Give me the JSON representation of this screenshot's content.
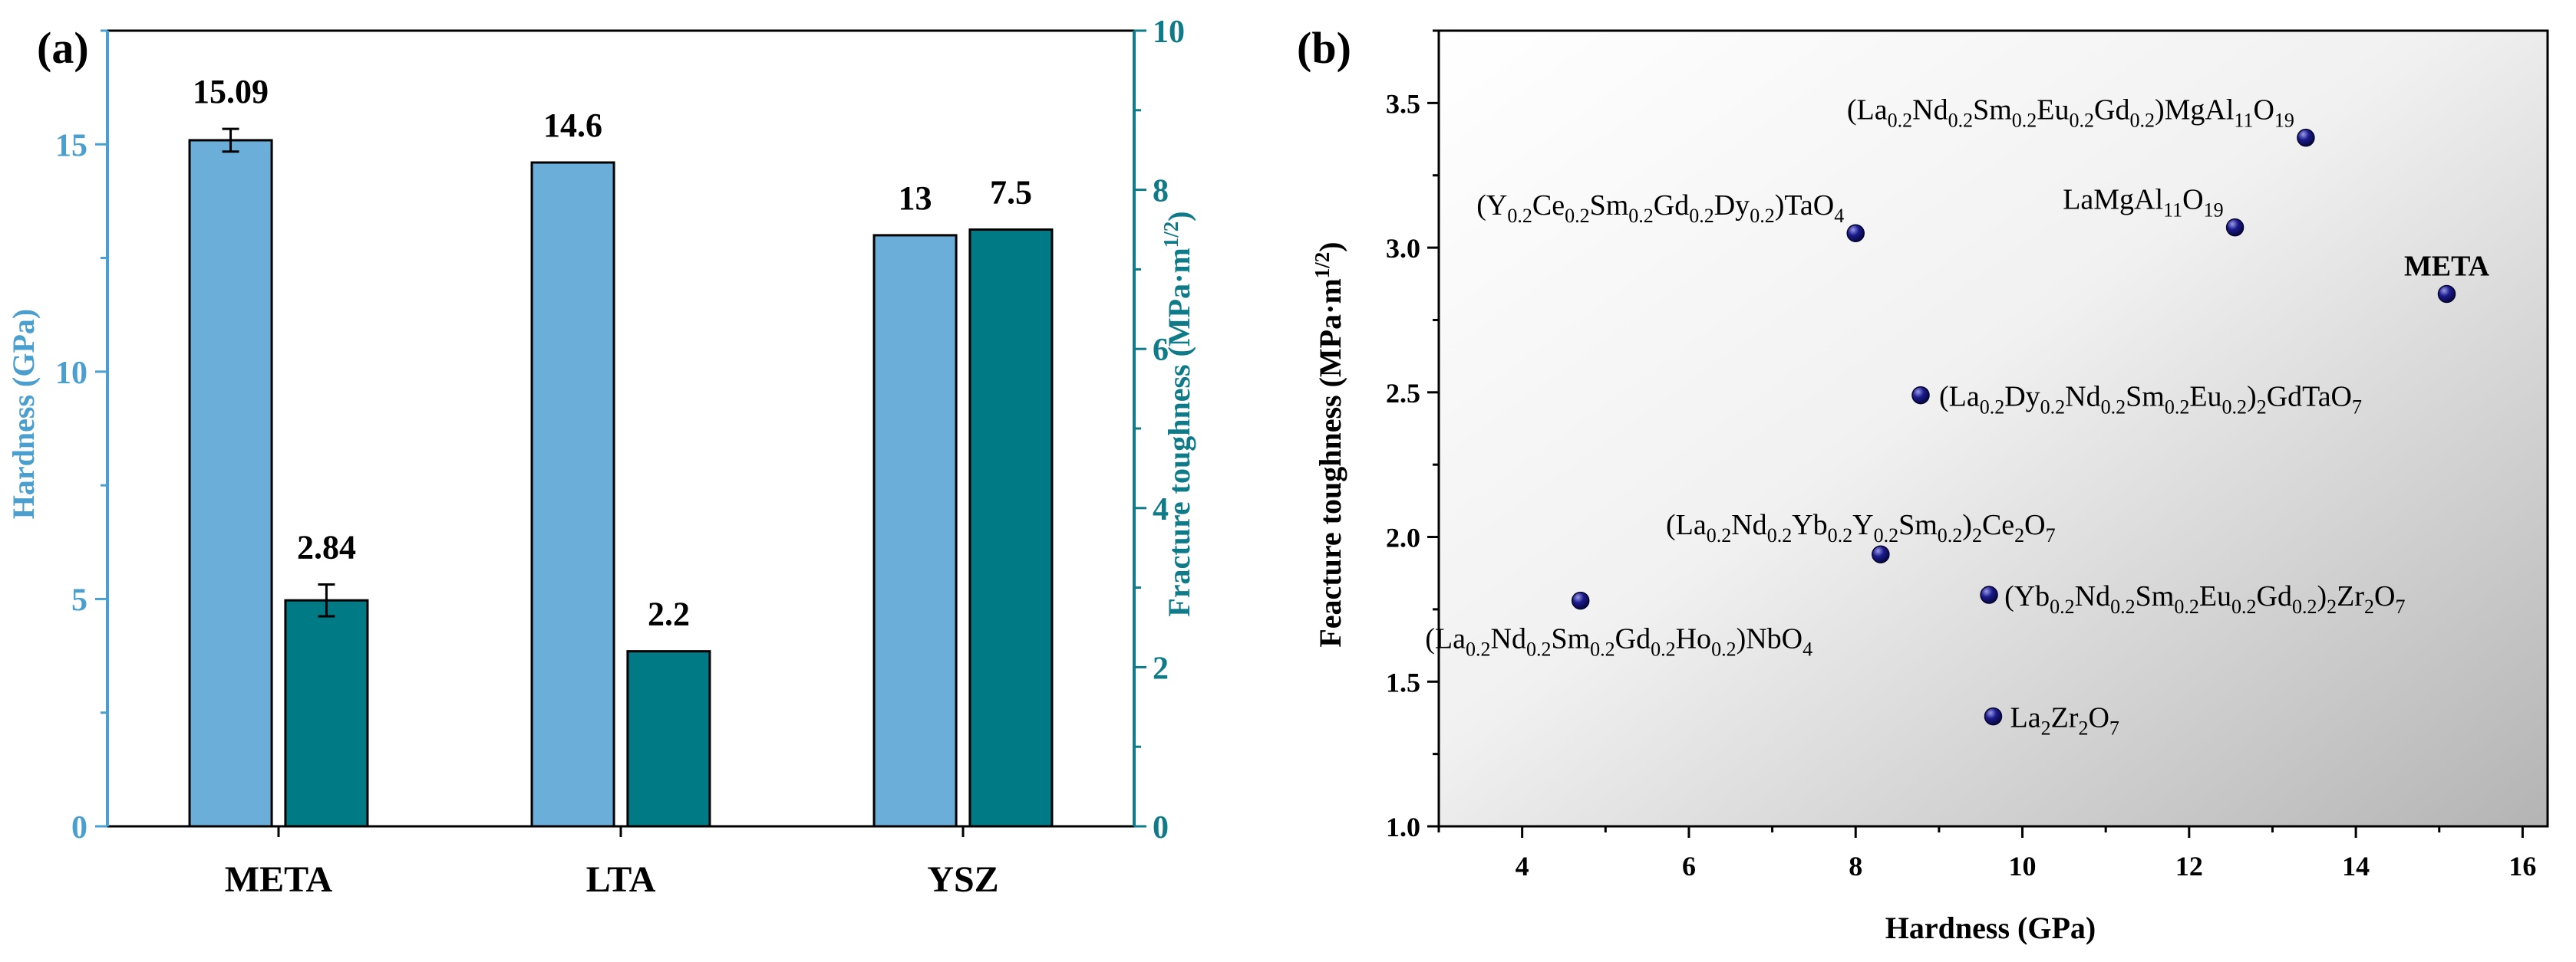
{
  "colors": {
    "hardness": "#6aaed9",
    "toughness": "#007a85",
    "hardness_axis": "#4a9fce",
    "toughness_axis": "#0f7a88",
    "marker": "#1a1a8c",
    "axis": "#000000"
  },
  "chart_data": [
    {
      "panel_label": "(a)",
      "type": "bar",
      "categories": [
        "META",
        "LTA",
        "YSZ"
      ],
      "series": [
        {
          "name": "Hardness",
          "axis": "left",
          "values": [
            15.09,
            14.6,
            13
          ],
          "value_labels": [
            "15.09",
            "14.6",
            "13"
          ],
          "errors": [
            0.25,
            null,
            null
          ]
        },
        {
          "name": "Fracture toughness",
          "axis": "right",
          "values": [
            2.84,
            2.2,
            7.5
          ],
          "value_labels": [
            "2.84",
            "2.2",
            "7.5"
          ],
          "errors": [
            0.2,
            null,
            null
          ]
        }
      ],
      "ylabel": "Hardness (GPa)",
      "y2label_main": "Fracture toughness (MPa·m",
      "y2label_exp": "1/2",
      "y2label_close": ")",
      "ylim": [
        0,
        17.5
      ],
      "y2lim": [
        0,
        10
      ],
      "yticks": [
        "0",
        "5",
        "10",
        "15"
      ],
      "y2ticks": [
        "0",
        "2",
        "4",
        "6",
        "8",
        "10"
      ]
    },
    {
      "panel_label": "(b)",
      "type": "scatter",
      "xlabel": "Hardness (GPa)",
      "ylabel_main": "Feacture toughness (MPa·m",
      "ylabel_exp": "1/2",
      "ylabel_close": ")",
      "xlim": [
        3,
        16.3
      ],
      "ylim": [
        1.0,
        3.75
      ],
      "xticks": [
        "4",
        "6",
        "8",
        "10",
        "12",
        "14",
        "16"
      ],
      "yticks": [
        "1.0",
        "1.5",
        "2.0",
        "2.5",
        "3.0",
        "3.5"
      ],
      "points": [
        {
          "x": 13.4,
          "y": 3.38,
          "parts": [
            [
              "(La",
              ""
            ],
            [
              "0.2",
              "sub"
            ],
            [
              "Nd",
              ""
            ],
            [
              "0.2",
              "sub"
            ],
            [
              "Sm",
              ""
            ],
            [
              "0.2",
              "sub"
            ],
            [
              "Eu",
              ""
            ],
            [
              "0.2",
              "sub"
            ],
            [
              "Gd",
              ""
            ],
            [
              "0.2",
              "sub"
            ],
            [
              ")MgAl",
              ""
            ],
            [
              "11",
              "sub"
            ],
            [
              "O",
              ""
            ],
            [
              "19",
              "sub"
            ]
          ]
        },
        {
          "x": 12.55,
          "y": 3.07,
          "parts": [
            [
              "LaMgAl",
              ""
            ],
            [
              "11",
              "sub"
            ],
            [
              "O",
              ""
            ],
            [
              "19",
              "sub"
            ]
          ]
        },
        {
          "x": 8.0,
          "y": 3.05,
          "parts": [
            [
              "(Y",
              ""
            ],
            [
              "0.2",
              "sub"
            ],
            [
              "Ce",
              ""
            ],
            [
              "0.2",
              "sub"
            ],
            [
              "Sm",
              ""
            ],
            [
              "0.2",
              "sub"
            ],
            [
              "Gd",
              ""
            ],
            [
              "0.2",
              "sub"
            ],
            [
              "Dy",
              ""
            ],
            [
              "0.2",
              "sub"
            ],
            [
              ")TaO",
              ""
            ],
            [
              "4",
              "sub"
            ]
          ]
        },
        {
          "x": 15.09,
          "y": 2.84,
          "parts": [
            [
              "META",
              "bold"
            ]
          ]
        },
        {
          "x": 8.78,
          "y": 2.49,
          "parts": [
            [
              "(La",
              ""
            ],
            [
              "0.2",
              "sub"
            ],
            [
              "Dy",
              ""
            ],
            [
              "0.2",
              "sub"
            ],
            [
              "Nd",
              ""
            ],
            [
              "0.2",
              "sub"
            ],
            [
              "Sm",
              ""
            ],
            [
              "0.2",
              "sub"
            ],
            [
              "Eu",
              ""
            ],
            [
              "0.2",
              "sub"
            ],
            [
              ")",
              ""
            ],
            [
              "2",
              "sub"
            ],
            [
              "GdTaO",
              ""
            ],
            [
              "7",
              "sub"
            ]
          ]
        },
        {
          "x": 8.3,
          "y": 1.94,
          "parts": [
            [
              "(La",
              ""
            ],
            [
              "0.2",
              "sub"
            ],
            [
              "Nd",
              ""
            ],
            [
              "0.2",
              "sub"
            ],
            [
              "Yb",
              ""
            ],
            [
              "0.2",
              "sub"
            ],
            [
              "Y",
              ""
            ],
            [
              "0.2",
              "sub"
            ],
            [
              "Sm",
              ""
            ],
            [
              "0.2",
              "sub"
            ],
            [
              ")",
              ""
            ],
            [
              "2",
              "sub"
            ],
            [
              "Ce",
              ""
            ],
            [
              "2",
              "sub"
            ],
            [
              "O",
              ""
            ],
            [
              "7",
              "sub"
            ]
          ]
        },
        {
          "x": 4.7,
          "y": 1.78,
          "parts": [
            [
              "(La",
              ""
            ],
            [
              "0.2",
              "sub"
            ],
            [
              "Nd",
              ""
            ],
            [
              "0.2",
              "sub"
            ],
            [
              "Sm",
              ""
            ],
            [
              "0.2",
              "sub"
            ],
            [
              "Gd",
              ""
            ],
            [
              "0.2",
              "sub"
            ],
            [
              "Ho",
              ""
            ],
            [
              "0.2",
              "sub"
            ],
            [
              ")NbO",
              ""
            ],
            [
              "4",
              "sub"
            ]
          ]
        },
        {
          "x": 9.6,
          "y": 1.8,
          "parts": [
            [
              "(Yb",
              ""
            ],
            [
              "0.2",
              "sub"
            ],
            [
              "Nd",
              ""
            ],
            [
              "0.2",
              "sub"
            ],
            [
              "Sm",
              ""
            ],
            [
              "0.2",
              "sub"
            ],
            [
              "Eu",
              ""
            ],
            [
              "0.2",
              "sub"
            ],
            [
              "Gd",
              ""
            ],
            [
              "0.2",
              "sub"
            ],
            [
              ")",
              ""
            ],
            [
              "2",
              "sub"
            ],
            [
              "Zr",
              ""
            ],
            [
              "2",
              "sub"
            ],
            [
              "O",
              ""
            ],
            [
              "7",
              "sub"
            ]
          ]
        },
        {
          "x": 9.65,
          "y": 1.38,
          "parts": [
            [
              "La",
              ""
            ],
            [
              "2",
              "sub"
            ],
            [
              "Zr",
              ""
            ],
            [
              "2",
              "sub"
            ],
            [
              "O",
              ""
            ],
            [
              "7",
              "sub"
            ]
          ]
        }
      ]
    }
  ]
}
